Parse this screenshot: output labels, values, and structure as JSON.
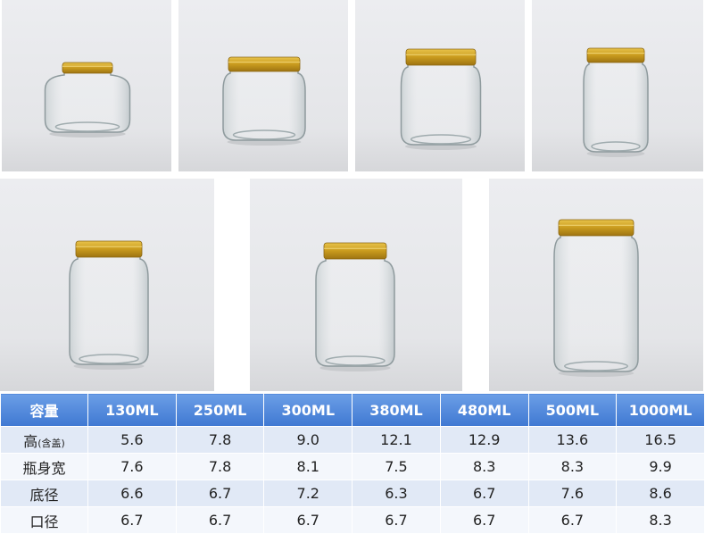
{
  "table": {
    "header": [
      "容量",
      "130ML",
      "250ML",
      "300ML",
      "380ML",
      "480ML",
      "500ML",
      "1000ML"
    ],
    "rows": [
      {
        "label": "高",
        "note": "(含盖)",
        "cells": [
          "5.6",
          "7.8",
          "9.0",
          "12.1",
          "12.9",
          "13.6",
          "16.5"
        ]
      },
      {
        "label": "瓶身宽",
        "cells": [
          "7.6",
          "7.8",
          "8.1",
          "7.5",
          "8.3",
          "8.3",
          "9.9"
        ]
      },
      {
        "label": "底径",
        "cells": [
          "6.6",
          "6.7",
          "7.2",
          "6.3",
          "6.7",
          "7.6",
          "8.6"
        ]
      },
      {
        "label": "口径",
        "cells": [
          "6.7",
          "6.7",
          "6.7",
          "6.7",
          "6.7",
          "6.7",
          "8.3"
        ]
      }
    ]
  }
}
